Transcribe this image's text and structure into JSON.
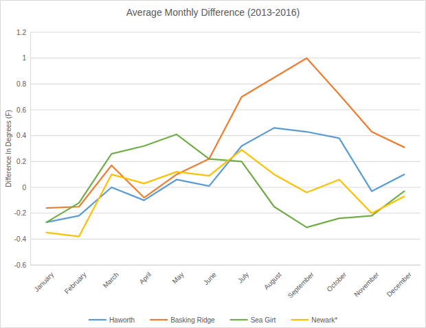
{
  "chart_data": {
    "type": "line",
    "title": "Average Monthly Difference (2013-2016)",
    "y_label": "Difference In Degrees (F)",
    "categories": [
      "January",
      "February",
      "March",
      "April",
      "May",
      "June",
      "July",
      "August",
      "September",
      "October",
      "November",
      "December"
    ],
    "series": [
      {
        "name": "Haworth",
        "color": "#5b9bd5",
        "values": [
          -0.27,
          -0.22,
          0.0,
          -0.1,
          0.06,
          0.01,
          0.32,
          0.46,
          0.43,
          0.38,
          -0.03,
          0.1
        ]
      },
      {
        "name": "Basking Ridge",
        "color": "#ed7d31",
        "values": [
          -0.16,
          -0.15,
          0.17,
          -0.08,
          0.1,
          0.22,
          0.7,
          0.85,
          1.0,
          0.72,
          0.43,
          0.31
        ]
      },
      {
        "name": "Sea Girt",
        "color": "#70ad47",
        "values": [
          -0.27,
          -0.12,
          0.26,
          0.32,
          0.41,
          0.22,
          0.2,
          -0.15,
          -0.31,
          -0.24,
          -0.22,
          -0.03
        ]
      },
      {
        "name": "Newark*",
        "color": "#ffc000",
        "values": [
          -0.35,
          -0.38,
          0.1,
          0.03,
          0.12,
          0.09,
          0.29,
          0.1,
          -0.04,
          0.06,
          -0.2,
          -0.07
        ]
      }
    ],
    "ylim": [
      -0.6,
      1.2
    ],
    "yticks": [
      -0.6,
      -0.4,
      -0.2,
      0,
      0.2,
      0.4,
      0.6,
      0.8,
      1,
      1.2
    ],
    "grid": true,
    "legend": "bottom"
  }
}
